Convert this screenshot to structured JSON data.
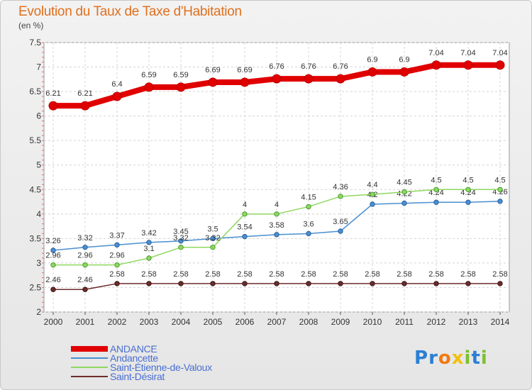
{
  "chart_data": {
    "type": "line",
    "title": "Evolution du Taux de Taxe d'Habitation",
    "unit_label": "(en %)",
    "x": [
      "2000",
      "2001",
      "2002",
      "2003",
      "2004",
      "2005",
      "2006",
      "2007",
      "2008",
      "2009",
      "2010",
      "2011",
      "2012",
      "2013",
      "2014"
    ],
    "ylim": [
      2,
      7.5
    ],
    "yticks": [
      "2",
      "2.5",
      "3",
      "3.5",
      "4",
      "4.5",
      "5",
      "5.5",
      "6",
      "6.5",
      "7",
      "7.5"
    ],
    "grid": true,
    "legend_position": "bottom-left",
    "series": [
      {
        "name": "ANDANCE",
        "color": "#e00000",
        "values": [
          6.21,
          6.21,
          6.4,
          6.59,
          6.59,
          6.69,
          6.69,
          6.76,
          6.76,
          6.76,
          6.9,
          6.9,
          7.04,
          7.04,
          7.04
        ],
        "labels": [
          "6.21",
          "6.21",
          "6.4",
          "6.59",
          "6.59",
          "6.69",
          "6.69",
          "6.76",
          "6.76",
          "6.76",
          "6.9",
          "6.9",
          "7.04",
          "7.04",
          "7.04"
        ]
      },
      {
        "name": "Andancette",
        "color": "#4a8fd0",
        "values": [
          3.26,
          3.32,
          3.37,
          3.42,
          3.45,
          3.5,
          3.54,
          3.58,
          3.6,
          3.65,
          4.2,
          4.22,
          4.24,
          4.24,
          4.26
        ],
        "labels": [
          "3.26",
          "3.32",
          "3.37",
          "3.42",
          "3.45",
          "3.5",
          "3.54",
          "3.58",
          "3.6",
          "3.65",
          "4.2",
          "4.22",
          "4.24",
          "4.24",
          "4.26"
        ]
      },
      {
        "name": "Saint-Étienne-de-Valoux",
        "color": "#8fd860",
        "values": [
          2.96,
          2.96,
          2.96,
          3.1,
          3.32,
          3.32,
          4,
          4,
          4.15,
          4.36,
          4.4,
          4.45,
          4.5,
          4.5,
          4.5
        ],
        "labels": [
          "2.96",
          "2.96",
          "2.96",
          "3.1",
          "3.32",
          "3.32",
          "4",
          "4",
          "4.15",
          "4.36",
          "4.4",
          "4.45",
          "4.5",
          "4.5",
          "4.5"
        ]
      },
      {
        "name": "Saint-Désirat",
        "color": "#6e2c2c",
        "values": [
          2.46,
          2.46,
          2.58,
          2.58,
          2.58,
          2.58,
          2.58,
          2.58,
          2.58,
          2.58,
          2.58,
          2.58,
          2.58,
          2.58,
          2.58
        ],
        "labels": [
          "2.46",
          "2.46",
          "2.58",
          "2.58",
          "2.58",
          "2.58",
          "2.58",
          "2.58",
          "2.58",
          "2.58",
          "2.58",
          "2.58",
          "2.58",
          "2.58",
          "2.58"
        ]
      }
    ]
  },
  "legend": {
    "items": [
      "ANDANCE",
      "Andancette",
      "Saint-Étienne-de-Valoux",
      "Saint-Désirat"
    ]
  },
  "brand": {
    "text": "Proxiti",
    "letters": [
      "P",
      "r",
      "o",
      "x",
      "i",
      "t",
      "i"
    ],
    "letter_colors": [
      "#2a7fd4",
      "#2a7fd4",
      "#f07a10",
      "#f0c010",
      "#7cc030",
      "#2a7fd4",
      "#7cc030"
    ]
  }
}
